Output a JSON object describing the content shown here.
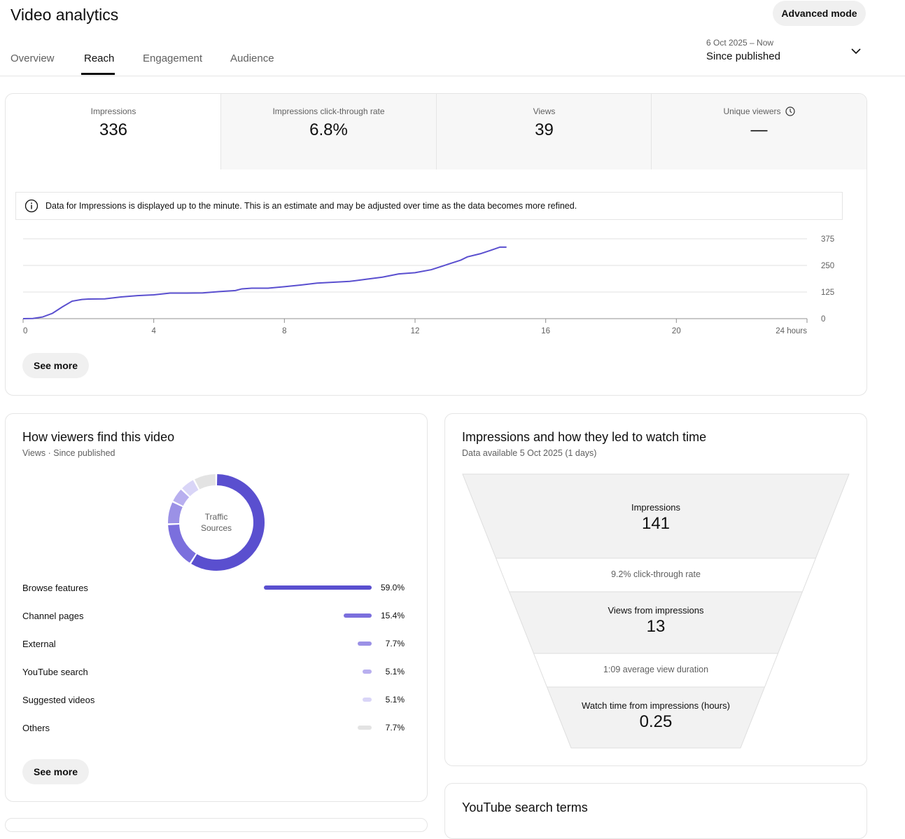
{
  "header": {
    "title": "Video analytics",
    "advanced_mode": "Advanced mode",
    "tabs": [
      "Overview",
      "Reach",
      "Engagement",
      "Audience"
    ],
    "active_tab": "Reach",
    "date_range": "6 Oct 2025 – Now",
    "period": "Since published"
  },
  "metrics": [
    {
      "label": "Impressions",
      "value": "336"
    },
    {
      "label": "Impressions click-through rate",
      "value": "6.8%"
    },
    {
      "label": "Views",
      "value": "39"
    },
    {
      "label": "Unique viewers",
      "value": "—",
      "icon": "clock-icon"
    }
  ],
  "notice": "Data for Impressions is displayed up to the minute. This is an estimate and may be adjusted over time as the data becomes more refined.",
  "see_more": "See more",
  "chart_data": {
    "type": "line",
    "x_ticks": [
      "0",
      "4",
      "8",
      "12",
      "16",
      "20",
      "24 hours"
    ],
    "y_ticks": [
      "0",
      "125",
      "250",
      "375"
    ],
    "xlim": [
      0,
      24
    ],
    "ylim": [
      0,
      375
    ],
    "grid": true,
    "color": "#5a4fcf",
    "x": [
      0,
      0.3,
      0.6,
      0.9,
      1.2,
      1.5,
      1.8,
      2,
      2.5,
      3,
      3.5,
      4,
      4.5,
      5,
      5.5,
      6,
      6.5,
      6.7,
      7,
      7.5,
      8,
      8.5,
      9,
      9.5,
      10,
      10.5,
      11,
      11.5,
      12,
      12.5,
      13,
      13.4,
      13.6,
      14,
      14.3,
      14.6,
      14.8
    ],
    "y": [
      0,
      1,
      8,
      25,
      55,
      82,
      90,
      92,
      93,
      102,
      108,
      112,
      120,
      120,
      121,
      127,
      132,
      140,
      143,
      143,
      150,
      158,
      167,
      171,
      175,
      185,
      195,
      210,
      216,
      230,
      255,
      275,
      290,
      305,
      320,
      336,
      336
    ]
  },
  "traffic": {
    "title": "How viewers find this video",
    "subtitle": "Views · Since published",
    "center_label": [
      "Traffic",
      "Sources"
    ],
    "sources": [
      {
        "name": "Browse features",
        "pct": "59.0%",
        "value": 59.0,
        "color": "#5a4fcf"
      },
      {
        "name": "Channel pages",
        "pct": "15.4%",
        "value": 15.4,
        "color": "#7b6fdd"
      },
      {
        "name": "External",
        "pct": "7.7%",
        "value": 7.7,
        "color": "#9b91e6"
      },
      {
        "name": "YouTube search",
        "pct": "5.1%",
        "value": 5.1,
        "color": "#b8afef"
      },
      {
        "name": "Suggested videos",
        "pct": "5.1%",
        "value": 5.1,
        "color": "#d9d5f7"
      },
      {
        "name": "Others",
        "pct": "7.7%",
        "value": 7.7,
        "color": "#e3e3e3"
      }
    ]
  },
  "funnel": {
    "title": "Impressions and how they led to watch time",
    "subtitle": "Data available 5 Oct 2025 (1 days)",
    "impressions_label": "Impressions",
    "impressions": "141",
    "ctr": "9.2% click-through rate",
    "views_label": "Views from impressions",
    "views": "13",
    "avd": "1:09 average view duration",
    "watch_label": "Watch time from impressions (hours)",
    "watch": "0.25"
  },
  "search_terms": {
    "title": "YouTube search terms"
  }
}
